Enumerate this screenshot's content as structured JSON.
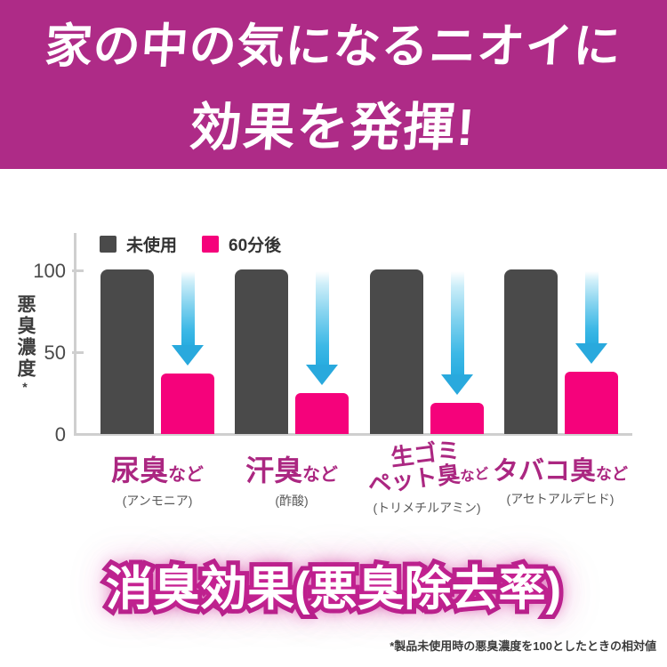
{
  "banner": {
    "line1": "家の中の気になるニオイに",
    "line2": "効果を発揮!"
  },
  "chart_data": {
    "type": "bar",
    "title": "消臭効果(悪臭除去率)",
    "ylabel": "悪臭濃度",
    "ylabel_note_mark": "*",
    "ylim": [
      0,
      100
    ],
    "yticks": [
      100,
      50,
      0
    ],
    "grid": false,
    "legend_position": "top-left",
    "categories": [
      {
        "main": "尿臭",
        "suffix": "など",
        "sub": "(アンモニア)"
      },
      {
        "main": "汗臭",
        "suffix": "など",
        "sub": "(酢酸)"
      },
      {
        "line1": "生ゴミ",
        "main": "ペット臭",
        "suffix": "など",
        "sub": "(トリメチルアミン)"
      },
      {
        "main": "タバコ臭",
        "suffix": "など",
        "sub": "(アセトアルデヒド)"
      }
    ],
    "series": [
      {
        "name": "未使用",
        "color": "#4a4a4a",
        "values": [
          100,
          100,
          100,
          100
        ]
      },
      {
        "name": "60分後",
        "color": "#f5027b",
        "values": [
          37,
          25,
          19,
          38
        ]
      }
    ],
    "annotation": "cyan down arrows show decrease from 未使用 to 60分後"
  },
  "footnote": {
    "text": "*製品未使用時の悪臭濃度を100としたときの相対値"
  },
  "colors": {
    "banner_bg": "#ae2b87",
    "banner_text": "#ffffff",
    "bar_unused": "#4a4a4a",
    "bar_after": "#f5027b",
    "arrow": "#29ade0",
    "category_label": "#ab2781",
    "sub_label": "#595959",
    "axis": "#cfcfcf",
    "title_glow": "#cd2396"
  }
}
